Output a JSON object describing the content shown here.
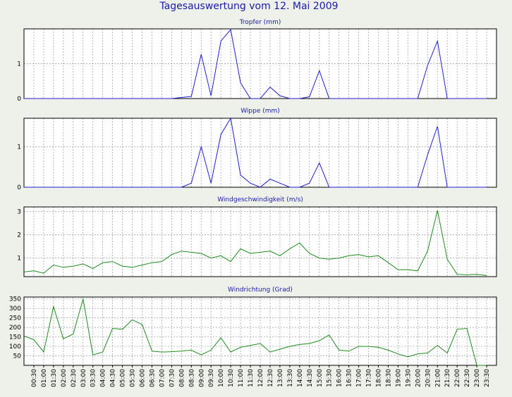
{
  "title": "Tagesauswertung vom 12. Mai 2009",
  "colors": {
    "background": "#eef0ea",
    "plot_background": "#ffffff",
    "title_text": "#1a1aa6",
    "grid": "#999999",
    "blue_series": "#1f1fd2",
    "green_series": "#1f8a1f"
  },
  "chart_data": [
    {
      "type": "line",
      "title": "Tropfer (mm)",
      "color": "blue",
      "ylim": [
        0,
        2
      ],
      "yticks": [
        0,
        1
      ],
      "grid": true,
      "x": [
        "00:00",
        "00:30",
        "01:00",
        "01:30",
        "02:00",
        "02:30",
        "03:00",
        "03:30",
        "04:00",
        "04:30",
        "05:00",
        "05:30",
        "06:00",
        "06:30",
        "07:00",
        "07:30",
        "08:00",
        "08:30",
        "09:00",
        "09:30",
        "10:00",
        "10:30",
        "11:00",
        "11:30",
        "12:00",
        "12:30",
        "13:00",
        "13:30",
        "14:00",
        "14:30",
        "15:00",
        "15:30",
        "16:00",
        "16:30",
        "17:00",
        "17:30",
        "18:00",
        "18:30",
        "19:00",
        "19:30",
        "20:00",
        "20:30",
        "21:00",
        "21:30",
        "22:00",
        "22:30",
        "23:00",
        "23:30"
      ],
      "values": [
        0,
        0,
        0,
        0,
        0,
        0,
        0,
        0,
        0,
        0,
        0,
        0,
        0,
        0,
        0,
        0,
        0.03,
        0.06,
        1.27,
        0.08,
        1.65,
        1.98,
        0.45,
        0,
        0,
        0.33,
        0.08,
        0,
        0,
        0.05,
        0.8,
        0,
        0,
        0,
        0,
        0,
        0,
        0,
        0,
        0,
        0,
        0.95,
        1.65,
        0,
        0,
        0,
        0,
        0
      ]
    },
    {
      "type": "line",
      "title": "Wippe (mm)",
      "color": "blue",
      "ylim": [
        0,
        1.7
      ],
      "yticks": [
        0,
        1
      ],
      "grid": true,
      "x": [
        "00:00",
        "00:30",
        "01:00",
        "01:30",
        "02:00",
        "02:30",
        "03:00",
        "03:30",
        "04:00",
        "04:30",
        "05:00",
        "05:30",
        "06:00",
        "06:30",
        "07:00",
        "07:30",
        "08:00",
        "08:30",
        "09:00",
        "09:30",
        "10:00",
        "10:30",
        "11:00",
        "11:30",
        "12:00",
        "12:30",
        "13:00",
        "13:30",
        "14:00",
        "14:30",
        "15:00",
        "15:30",
        "16:00",
        "16:30",
        "17:00",
        "17:30",
        "18:00",
        "18:30",
        "19:00",
        "19:30",
        "20:00",
        "20:30",
        "21:00",
        "21:30",
        "22:00",
        "22:30",
        "23:00",
        "23:30"
      ],
      "values": [
        0,
        0,
        0,
        0,
        0,
        0,
        0,
        0,
        0,
        0,
        0,
        0,
        0,
        0,
        0,
        0,
        0,
        0.1,
        1.0,
        0.1,
        1.3,
        1.7,
        0.3,
        0.1,
        0,
        0.2,
        0.1,
        0,
        0,
        0.1,
        0.6,
        0,
        0,
        0,
        0,
        0,
        0,
        0,
        0,
        0,
        0,
        0.8,
        1.5,
        0,
        0,
        0,
        0,
        0
      ]
    },
    {
      "type": "line",
      "title": "Windgeschwindigkeit (m/s)",
      "color": "green",
      "ylim": [
        0.2,
        3.2
      ],
      "yticks": [
        1,
        2,
        3
      ],
      "grid": true,
      "x": [
        "00:00",
        "00:30",
        "01:00",
        "01:30",
        "02:00",
        "02:30",
        "03:00",
        "03:30",
        "04:00",
        "04:30",
        "05:00",
        "05:30",
        "06:00",
        "06:30",
        "07:00",
        "07:30",
        "08:00",
        "08:30",
        "09:00",
        "09:30",
        "10:00",
        "10:30",
        "11:00",
        "11:30",
        "12:00",
        "12:30",
        "13:00",
        "13:30",
        "14:00",
        "14:30",
        "15:00",
        "15:30",
        "16:00",
        "16:30",
        "17:00",
        "17:30",
        "18:00",
        "18:30",
        "19:00",
        "19:30",
        "20:00",
        "20:30",
        "21:00",
        "21:30",
        "22:00",
        "22:30",
        "23:00",
        "23:30"
      ],
      "values": [
        0.4,
        0.45,
        0.35,
        0.7,
        0.6,
        0.65,
        0.75,
        0.55,
        0.8,
        0.85,
        0.65,
        0.6,
        0.7,
        0.8,
        0.85,
        1.15,
        1.3,
        1.25,
        1.2,
        1.0,
        1.1,
        0.85,
        1.4,
        1.2,
        1.25,
        1.3,
        1.1,
        1.4,
        1.65,
        1.2,
        1.0,
        0.95,
        1.0,
        1.1,
        1.15,
        1.05,
        1.1,
        0.8,
        0.5,
        0.5,
        0.45,
        1.3,
        3.05,
        0.95,
        0.3,
        0.28,
        0.3,
        0.25
      ]
    },
    {
      "type": "line",
      "title": "Windrichtung (Grad)",
      "color": "green",
      "ylim": [
        0,
        360
      ],
      "yticks": [
        50,
        100,
        150,
        200,
        250,
        300,
        350
      ],
      "grid": true,
      "x": [
        "00:00",
        "00:30",
        "01:00",
        "01:30",
        "02:00",
        "02:30",
        "03:00",
        "03:30",
        "04:00",
        "04:30",
        "05:00",
        "05:30",
        "06:00",
        "06:30",
        "07:00",
        "07:30",
        "08:00",
        "08:30",
        "09:00",
        "09:30",
        "10:00",
        "10:30",
        "11:00",
        "11:30",
        "12:00",
        "12:30",
        "13:00",
        "13:30",
        "14:00",
        "14:30",
        "15:00",
        "15:30",
        "16:00",
        "16:30",
        "17:00",
        "17:30",
        "18:00",
        "18:30",
        "19:00",
        "19:30",
        "20:00",
        "20:30",
        "21:00",
        "21:30",
        "22:00",
        "22:30",
        "23:00",
        "23:30"
      ],
      "values": [
        155,
        135,
        70,
        310,
        140,
        165,
        350,
        55,
        70,
        195,
        190,
        240,
        215,
        75,
        70,
        72,
        75,
        80,
        55,
        80,
        145,
        70,
        95,
        105,
        115,
        70,
        85,
        100,
        110,
        115,
        130,
        160,
        80,
        75,
        100,
        100,
        95,
        80,
        60,
        45,
        60,
        65,
        105,
        65,
        190,
        195,
        0,
        0
      ]
    }
  ],
  "x_tick_labels": [
    "00:30",
    "01:00",
    "01:30",
    "02:00",
    "02:30",
    "03:00",
    "03:30",
    "04:00",
    "04:30",
    "05:00",
    "05:30",
    "06:00",
    "06:30",
    "07:00",
    "07:30",
    "08:00",
    "08:30",
    "09:00",
    "09:30",
    "10:00",
    "10:30",
    "11:00",
    "11:30",
    "12:00",
    "12:30",
    "13:00",
    "13:30",
    "14:00",
    "14:30",
    "15:00",
    "15:30",
    "16:00",
    "16:30",
    "17:00",
    "17:30",
    "18:00",
    "18:30",
    "19:00",
    "19:30",
    "20:00",
    "20:30",
    "21:00",
    "21:30",
    "22:00",
    "22:30",
    "23:00",
    "23:30"
  ]
}
